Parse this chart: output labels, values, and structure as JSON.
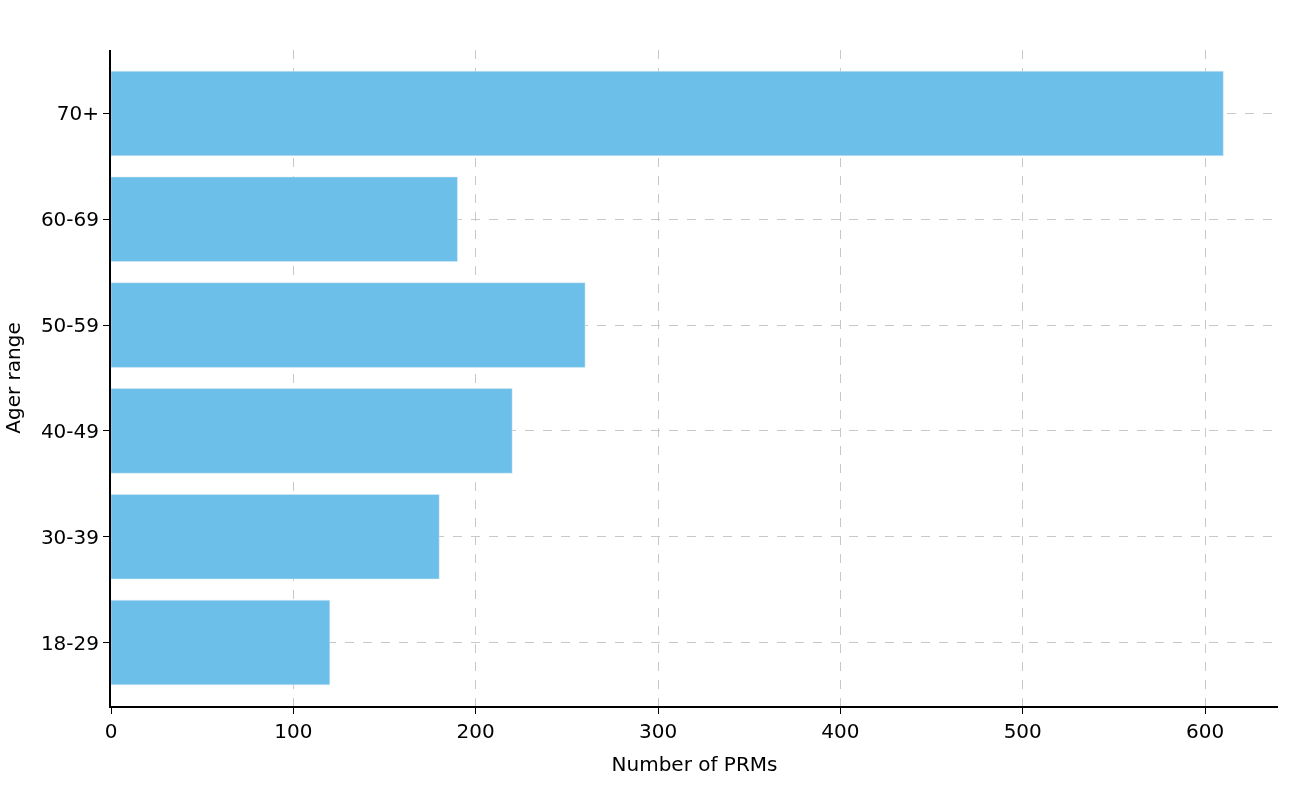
{
  "chart_data": {
    "type": "bar",
    "orientation": "horizontal",
    "categories": [
      "70+",
      "60-69",
      "50-59",
      "40-49",
      "30-39",
      "18-29"
    ],
    "values": [
      610,
      190,
      260,
      220,
      180,
      120
    ],
    "color": "#6bbfe8",
    "xlabel": "Number of PRMs",
    "ylabel": "Ager range",
    "xlim": [
      0,
      640
    ],
    "xticks": [
      0,
      100,
      200,
      300,
      400,
      500,
      600
    ],
    "grid": true
  }
}
